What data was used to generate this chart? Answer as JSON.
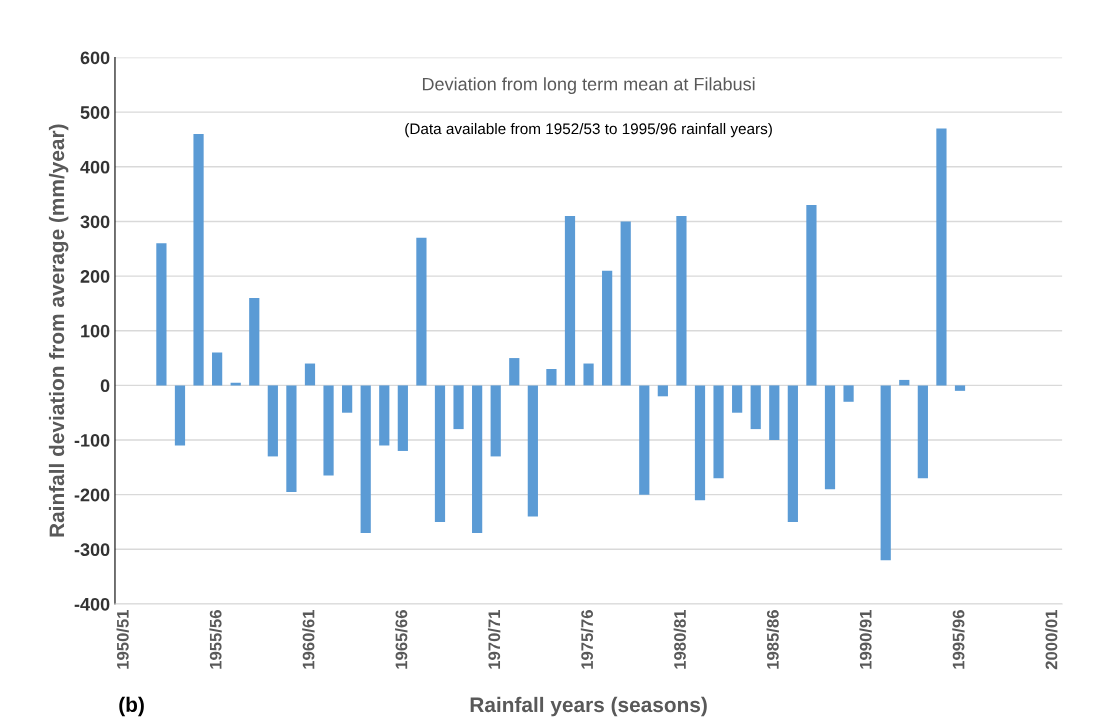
{
  "chart_data": {
    "type": "bar",
    "title": "Deviation from long term mean at Filabusi",
    "subtitle": "(Data available from 1952/53 to 1995/96 rainfall years)",
    "xlabel": "Rainfall years (seasons)",
    "ylabel": "Rainfall deviation from average (mm/year)",
    "annotations": [
      "(b)"
    ],
    "categories": [
      "1950/51",
      null,
      null,
      null,
      null,
      "1955/56",
      null,
      null,
      null,
      null,
      "1960/61",
      null,
      null,
      null,
      null,
      "1965/66",
      null,
      null,
      null,
      null,
      "1970/71",
      null,
      null,
      null,
      null,
      "1975/76",
      null,
      null,
      null,
      null,
      "1980/81",
      null,
      null,
      null,
      null,
      "1985/86",
      null,
      null,
      null,
      null,
      "1990/91",
      null,
      null,
      null,
      null,
      "1995/96",
      null,
      null,
      null,
      null,
      "2000/01"
    ],
    "values": [
      null,
      null,
      260,
      -110,
      460,
      60,
      5,
      160,
      -130,
      -195,
      40,
      -165,
      -50,
      -270,
      -110,
      -120,
      270,
      -250,
      -80,
      -270,
      -130,
      50,
      -240,
      30,
      310,
      40,
      210,
      300,
      -200,
      -20,
      310,
      -210,
      -170,
      -50,
      -80,
      -100,
      -250,
      330,
      -190,
      -30,
      null,
      -320,
      10,
      -170,
      470,
      -10,
      null,
      null,
      null,
      null,
      null
    ],
    "color": "#5b9bd5",
    "ylim": [
      -400,
      600
    ],
    "yticks": [
      -400,
      -300,
      -200,
      -100,
      0,
      100,
      200,
      300,
      400,
      500,
      600
    ],
    "grid": "y",
    "legend": false
  }
}
